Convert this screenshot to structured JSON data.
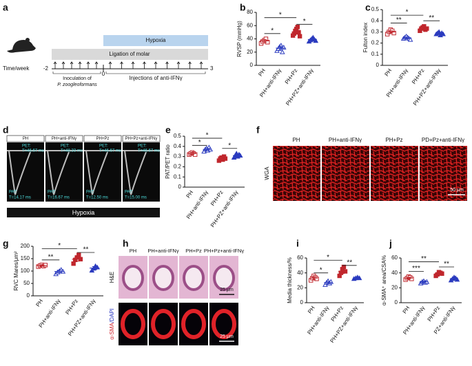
{
  "panel_letters": [
    "a",
    "b",
    "c",
    "d",
    "e",
    "f",
    "g",
    "h",
    "i",
    "j"
  ],
  "panel_a": {
    "hypoxia": "Hypoxia",
    "ligation": "Ligation of molar",
    "time_label": "Time/week",
    "ticks": [
      "-2",
      "0",
      "3"
    ],
    "inoculation": [
      "Inoculation of",
      "P. zoogleoformans"
    ],
    "injections": "Injections of anti-IFNγ"
  },
  "panel_d": {
    "images": [
      {
        "title": "PH",
        "pet": [
          "PET:",
          "T=46.67 ms"
        ],
        "pat": [
          "PAT:",
          "T=14.17 ms"
        ]
      },
      {
        "title": "PH+anti-IFNγ",
        "pet": [
          "PET:",
          "T=48.33 ms"
        ],
        "pat": [
          "PAT:",
          "T=16.67 ms"
        ]
      },
      {
        "title": "PH+Pz",
        "pet": [
          "PET:",
          "T=46.67 ms"
        ],
        "pat": [
          "PAT:",
          "T=12.50 ms"
        ]
      },
      {
        "title": "PH+Pz+anti-IFNγ",
        "pet": [
          "PET:",
          "T=46.67 ms"
        ],
        "pat": [
          "PAT:",
          "T=15.00 ms"
        ]
      }
    ],
    "bar": "Hypoxia"
  },
  "panel_f": {
    "titles": [
      "PH",
      "PH+anti-IFNγ",
      "PH+Pz",
      "PD+Pz+anti-IFNγ"
    ],
    "stain": "WGA",
    "scale": "50 μm"
  },
  "panel_h": {
    "titles": [
      "PH",
      "PH+anti-IFNγ",
      "PH+Pz",
      "PH+Pz+anti-IFNγ"
    ],
    "rows": [
      "H&E",
      [
        "α-SMA",
        "/DAPI"
      ]
    ],
    "scale": [
      "25 μm",
      "25 μm"
    ]
  },
  "chart_data": [
    {
      "type": "dotplot",
      "ylabel": "RVSP (mmHg)",
      "categories": [
        "PH",
        "PH+anti-IFNγ",
        "PH+Pz",
        "PH+PZ+anti-IFNγ"
      ],
      "groups": [
        {
          "color": "#c0272d",
          "marker": "square",
          "filled": false,
          "points": [
            33,
            36,
            38,
            40,
            35
          ],
          "mean": 37,
          "error": 2
        },
        {
          "color": "#2b3bbf",
          "marker": "triangle",
          "filled": false,
          "points": [
            22,
            25,
            28,
            30,
            20,
            27
          ],
          "mean": 26,
          "error": 3
        },
        {
          "color": "#c0272d",
          "marker": "square",
          "filled": true,
          "points": [
            45,
            48,
            52,
            55,
            58,
            50,
            44
          ],
          "mean": 50,
          "error": 3
        },
        {
          "color": "#2b3bbf",
          "marker": "triangle",
          "filled": true,
          "points": [
            36,
            38,
            40,
            42,
            39,
            37
          ],
          "mean": 39,
          "error": 1.5
        }
      ],
      "ylim": [
        0,
        80
      ],
      "yticks": [
        0,
        20,
        40,
        60,
        80
      ],
      "brackets": [
        {
          "from": 0,
          "to": 1,
          "y": 48,
          "label": "*"
        },
        {
          "from": 2,
          "to": 3,
          "y": 62,
          "label": "*"
        },
        {
          "from": 0,
          "to": 2,
          "y": 72,
          "label": "*"
        }
      ]
    },
    {
      "type": "dotplot",
      "ylabel": "Fulton index",
      "categories": [
        "PH",
        "PH+anti-IFNγ",
        "PH+Pz",
        "PH+PZ+anti-IFNγ"
      ],
      "groups": [
        {
          "color": "#c0272d",
          "marker": "square",
          "filled": false,
          "points": [
            0.28,
            0.3,
            0.32,
            0.31,
            0.29
          ],
          "mean": 0.3,
          "error": 0.01
        },
        {
          "color": "#2b3bbf",
          "marker": "triangle",
          "filled": false,
          "points": [
            0.24,
            0.25,
            0.26,
            0.25,
            0.24,
            0.23
          ],
          "mean": 0.245,
          "error": 0.008
        },
        {
          "color": "#c0272d",
          "marker": "square",
          "filled": true,
          "points": [
            0.31,
            0.33,
            0.34,
            0.35,
            0.32,
            0.33
          ],
          "mean": 0.33,
          "error": 0.01
        },
        {
          "color": "#2b3bbf",
          "marker": "triangle",
          "filled": true,
          "points": [
            0.28,
            0.29,
            0.3,
            0.27,
            0.29,
            0.28
          ],
          "mean": 0.285,
          "error": 0.008
        }
      ],
      "ylim": [
        0,
        0.5
      ],
      "yticks": [
        0,
        0.1,
        0.2,
        0.3,
        0.4,
        0.5
      ],
      "brackets": [
        {
          "from": 0,
          "to": 1,
          "y": 0.38,
          "label": "**"
        },
        {
          "from": 2,
          "to": 3,
          "y": 0.4,
          "label": "**"
        },
        {
          "from": 0,
          "to": 2,
          "y": 0.45,
          "label": "*"
        }
      ]
    },
    {
      "type": "dotplot",
      "ylabel": "PAT/PET ratio",
      "categories": [
        "PH",
        "PH+anti-IFNγ",
        "PH+Pz",
        "PH+PZ+anti-IFNγ"
      ],
      "groups": [
        {
          "color": "#c0272d",
          "marker": "square",
          "filled": false,
          "points": [
            0.32,
            0.33,
            0.34,
            0.33,
            0.32
          ],
          "mean": 0.33,
          "error": 0.01
        },
        {
          "color": "#2b3bbf",
          "marker": "triangle",
          "filled": false,
          "points": [
            0.35,
            0.37,
            0.38,
            0.36,
            0.39,
            0.37
          ],
          "mean": 0.37,
          "error": 0.01
        },
        {
          "color": "#c0272d",
          "marker": "square",
          "filled": true,
          "points": [
            0.26,
            0.28,
            0.29,
            0.27,
            0.3,
            0.28
          ],
          "mean": 0.28,
          "error": 0.01
        },
        {
          "color": "#2b3bbf",
          "marker": "triangle",
          "filled": true,
          "points": [
            0.29,
            0.31,
            0.33,
            0.3,
            0.32,
            0.31
          ],
          "mean": 0.31,
          "error": 0.01
        }
      ],
      "ylim": [
        0,
        0.5
      ],
      "yticks": [
        0,
        0.1,
        0.2,
        0.3,
        0.4,
        0.5
      ],
      "brackets": [
        {
          "from": 0,
          "to": 1,
          "y": 0.41,
          "label": "*"
        },
        {
          "from": 2,
          "to": 3,
          "y": 0.38,
          "label": "*"
        },
        {
          "from": 0,
          "to": 2,
          "y": 0.48,
          "label": "*"
        }
      ]
    },
    {
      "type": "dotplot",
      "ylabel": "RVC Mares/μm²",
      "categories": [
        "PH",
        "PH+anti-IFNγ",
        "PH+Pz",
        "PH+PZ+anti-IFNγ"
      ],
      "groups": [
        {
          "color": "#c0272d",
          "marker": "square",
          "filled": false,
          "points": [
            118,
            122,
            125,
            120,
            124
          ],
          "mean": 122,
          "error": 3
        },
        {
          "color": "#2b3bbf",
          "marker": "triangle",
          "filled": false,
          "points": [
            88,
            95,
            100,
            105,
            98
          ],
          "mean": 98,
          "error": 5
        },
        {
          "color": "#c0272d",
          "marker": "square",
          "filled": true,
          "points": [
            130,
            145,
            155,
            165,
            148
          ],
          "mean": 148,
          "error": 8
        },
        {
          "color": "#2b3bbf",
          "marker": "triangle",
          "filled": true,
          "points": [
            102,
            110,
            120,
            115
          ],
          "mean": 112,
          "error": 6
        }
      ],
      "ylim": [
        0,
        200
      ],
      "yticks": [
        0,
        50,
        100,
        150,
        200
      ],
      "brackets": [
        {
          "from": 0,
          "to": 1,
          "y": 145,
          "label": "**"
        },
        {
          "from": 2,
          "to": 3,
          "y": 175,
          "label": "**"
        },
        {
          "from": 0,
          "to": 2,
          "y": 190,
          "label": "*"
        }
      ]
    },
    {
      "type": "dotplot",
      "ylabel": "Media thickness/%",
      "categories": [
        "PH",
        "PH+anti-IFNγ",
        "PH+Pz",
        "PH+PZ+anti-IFNγ"
      ],
      "groups": [
        {
          "color": "#c0272d",
          "marker": "square",
          "filled": false,
          "points": [
            30,
            33,
            36,
            34,
            32
          ],
          "mean": 33,
          "error": 2
        },
        {
          "color": "#2b3bbf",
          "marker": "triangle",
          "filled": false,
          "points": [
            24,
            27,
            29,
            26,
            28
          ],
          "mean": 27,
          "error": 1.5
        },
        {
          "color": "#c0272d",
          "marker": "square",
          "filled": true,
          "points": [
            36,
            40,
            45,
            48,
            42
          ],
          "mean": 42,
          "error": 3
        },
        {
          "color": "#2b3bbf",
          "marker": "triangle",
          "filled": true,
          "points": [
            32,
            33,
            34,
            33
          ],
          "mean": 33,
          "error": 0.8
        }
      ],
      "ylim": [
        0,
        60
      ],
      "yticks": [
        0,
        20,
        40,
        60
      ],
      "brackets": [
        {
          "from": 0,
          "to": 1,
          "y": 40,
          "label": "*"
        },
        {
          "from": 2,
          "to": 3,
          "y": 50,
          "label": "**"
        },
        {
          "from": 0,
          "to": 2,
          "y": 57,
          "label": "*"
        }
      ]
    },
    {
      "type": "dotplot",
      "ylabel": "α-SMA⁺ area/CSA%",
      "categories": [
        "PH",
        "PH+anti-IFNγ",
        "PH+Pz",
        "PZ+anti-IFNγ"
      ],
      "groups": [
        {
          "color": "#c0272d",
          "marker": "square",
          "filled": false,
          "points": [
            31,
            33,
            35,
            34,
            32
          ],
          "mean": 33,
          "error": 1.2
        },
        {
          "color": "#2b3bbf",
          "marker": "triangle",
          "filled": false,
          "points": [
            26,
            28,
            29,
            27,
            28
          ],
          "mean": 28,
          "error": 0.8
        },
        {
          "color": "#c0272d",
          "marker": "square",
          "filled": true,
          "points": [
            36,
            38,
            41,
            40,
            39
          ],
          "mean": 39,
          "error": 1.5
        },
        {
          "color": "#2b3bbf",
          "marker": "triangle",
          "filled": true,
          "points": [
            30,
            32,
            34,
            33,
            31
          ],
          "mean": 32,
          "error": 1
        }
      ],
      "ylim": [
        0,
        60
      ],
      "yticks": [
        0,
        20,
        40,
        60
      ],
      "brackets": [
        {
          "from": 0,
          "to": 1,
          "y": 42,
          "label": "***"
        },
        {
          "from": 2,
          "to": 3,
          "y": 48,
          "label": "**"
        },
        {
          "from": 0,
          "to": 2,
          "y": 55,
          "label": "**"
        }
      ]
    }
  ]
}
